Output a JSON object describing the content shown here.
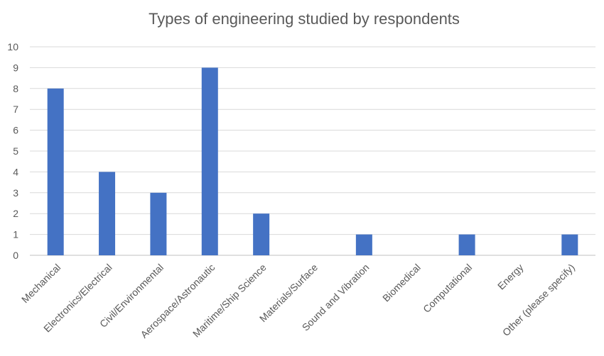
{
  "chart_data": {
    "type": "bar",
    "title": "Types of engineering studied by respondents",
    "categories": [
      "Mechanical",
      "Electronics/Electrical",
      "Civil/Environmental",
      "Aerospace/Astronautic",
      "Maritime/Ship Science",
      "Materials/Surface",
      "Sound and Vibration",
      "Biomedical",
      "Computational",
      "Energy",
      "Other (please specify)"
    ],
    "values": [
      8,
      4,
      3,
      9,
      2,
      0,
      1,
      0,
      1,
      0,
      1
    ],
    "ylim": [
      0,
      10
    ],
    "yticks": [
      "0",
      "1",
      "2",
      "3",
      "4",
      "5",
      "6",
      "7",
      "8",
      "9",
      "10"
    ],
    "grid": true,
    "legend": "none",
    "colors": {
      "bar": "#4472C4",
      "grid": "#D9D9D9",
      "axis": "#BFBFBF",
      "text": "#595959"
    }
  }
}
